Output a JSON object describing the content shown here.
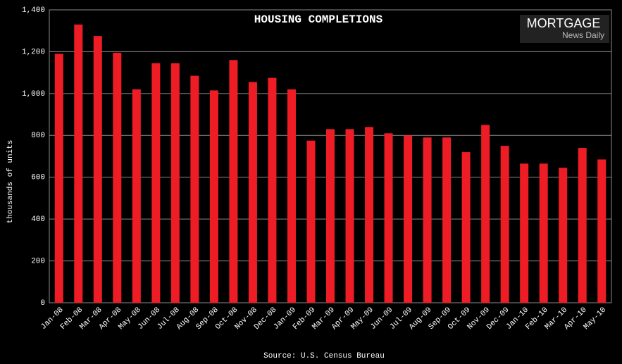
{
  "chart_data": {
    "type": "bar",
    "title": "HOUSING COMPLETIONS",
    "y_label": "thousands of units",
    "source": "Source: U.S. Census Bureau",
    "logo": {
      "line1": "MORTGAGE",
      "line2": "News Daily"
    },
    "categories": [
      "Jan-08",
      "Feb-08",
      "Mar-08",
      "Apr-08",
      "May-08",
      "Jun-08",
      "Jul-08",
      "Aug-08",
      "Sep-08",
      "Oct-08",
      "Nov-08",
      "Dec-08",
      "Jan-09",
      "Feb-09",
      "Mar-09",
      "Apr-09",
      "May-09",
      "Jun-09",
      "Jul-09",
      "Aug-09",
      "Sep-09",
      "Oct-09",
      "Nov-09",
      "Dec-09",
      "Jan-10",
      "Feb-10",
      "Mar-10",
      "Apr-10",
      "May-10"
    ],
    "values": [
      1190,
      1330,
      1275,
      1195,
      1020,
      1145,
      1145,
      1085,
      1015,
      1160,
      1055,
      1075,
      1020,
      775,
      830,
      830,
      840,
      810,
      800,
      790,
      790,
      720,
      850,
      750,
      665,
      665,
      645,
      740,
      685
    ],
    "color": "#ee1c25",
    "ylim": [
      0,
      1400
    ],
    "yticks": [
      0,
      200,
      400,
      600,
      800,
      {
        "value": 1000,
        "label": "1,000"
      },
      {
        "value": 1200,
        "label": "1,200"
      },
      {
        "value": 1400,
        "label": "1,400"
      }
    ],
    "grid": true
  }
}
